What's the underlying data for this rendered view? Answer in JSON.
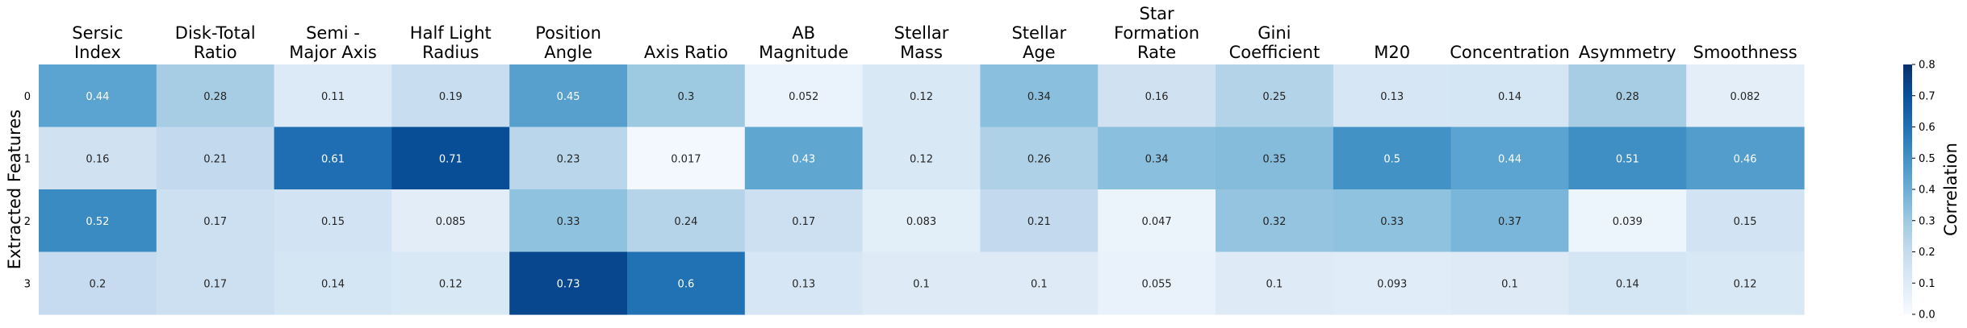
{
  "chart_data": {
    "type": "heatmap",
    "colormap": "Blues",
    "x_labels": [
      [
        "Sersic",
        "Index"
      ],
      [
        "Disk-Total",
        "Ratio"
      ],
      [
        "Semi -",
        "Major Axis"
      ],
      [
        "Half Light",
        "Radius"
      ],
      [
        "Position",
        "Angle"
      ],
      [
        "Axis Ratio"
      ],
      [
        "AB",
        "Magnitude"
      ],
      [
        "Stellar",
        "Mass"
      ],
      [
        "Stellar",
        "Age"
      ],
      [
        "Star",
        "Formation",
        "Rate"
      ],
      [
        "Gini",
        "Coefficient"
      ],
      [
        "M20"
      ],
      [
        "Concentration"
      ],
      [
        "Asymmetry"
      ],
      [
        "Smoothness"
      ]
    ],
    "y_labels": [
      "0",
      "1",
      "2",
      "3"
    ],
    "ylabel": "Extracted Features",
    "values": [
      [
        0.44,
        0.28,
        0.11,
        0.19,
        0.45,
        0.3,
        0.052,
        0.12,
        0.34,
        0.16,
        0.25,
        0.13,
        0.14,
        0.28,
        0.082
      ],
      [
        0.16,
        0.21,
        0.61,
        0.71,
        0.23,
        0.017,
        0.43,
        0.12,
        0.26,
        0.34,
        0.35,
        0.5,
        0.44,
        0.51,
        0.46
      ],
      [
        0.52,
        0.17,
        0.15,
        0.085,
        0.33,
        0.24,
        0.17,
        0.083,
        0.21,
        0.047,
        0.32,
        0.33,
        0.37,
        0.039,
        0.15
      ],
      [
        0.2,
        0.17,
        0.14,
        0.12,
        0.73,
        0.6,
        0.13,
        0.1,
        0.1,
        0.055,
        0.1,
        0.093,
        0.1,
        0.14,
        0.12
      ]
    ],
    "colorbar": {
      "label": "Correlation",
      "range": [
        0.0,
        0.8
      ],
      "ticks": [
        "0.0",
        "0.1",
        "0.2",
        "0.3",
        "0.4",
        "0.5",
        "0.6",
        "0.7",
        "0.8"
      ]
    }
  }
}
